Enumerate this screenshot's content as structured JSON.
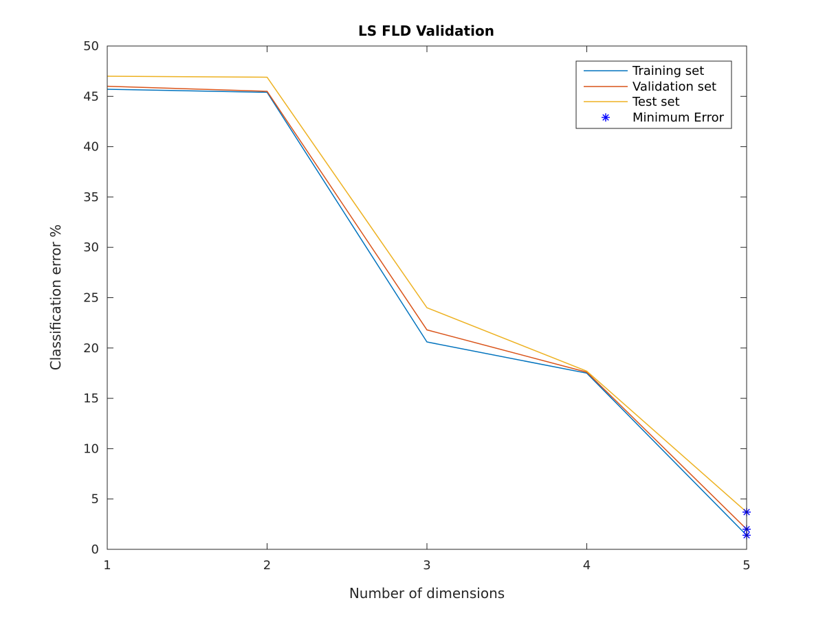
{
  "chart_data": {
    "type": "line",
    "title": "LS FLD Validation",
    "xlabel": "Number of dimensions",
    "ylabel": "Classification error %",
    "xlim": [
      1,
      5
    ],
    "ylim": [
      0,
      50
    ],
    "xticks": [
      1,
      2,
      3,
      4,
      5
    ],
    "yticks": [
      0,
      5,
      10,
      15,
      20,
      25,
      30,
      35,
      40,
      45,
      50
    ],
    "grid": false,
    "legend_position": "top-right",
    "x": [
      1,
      2,
      3,
      4,
      5
    ],
    "series": [
      {
        "name": "Training set",
        "color": "#0072BD",
        "values": [
          45.7,
          45.4,
          20.6,
          17.5,
          1.4
        ]
      },
      {
        "name": "Validation set",
        "color": "#D95319",
        "values": [
          46.0,
          45.5,
          21.8,
          17.6,
          2.0
        ]
      },
      {
        "name": "Test set",
        "color": "#EDB120",
        "values": [
          47.0,
          46.9,
          24.0,
          17.7,
          3.7
        ]
      }
    ],
    "markers": {
      "name": "Minimum Error",
      "symbol": "asterisk",
      "color": "#0000FF",
      "points": [
        {
          "x": 5,
          "y": 1.4
        },
        {
          "x": 5,
          "y": 2.0
        },
        {
          "x": 5,
          "y": 3.7
        }
      ]
    }
  }
}
